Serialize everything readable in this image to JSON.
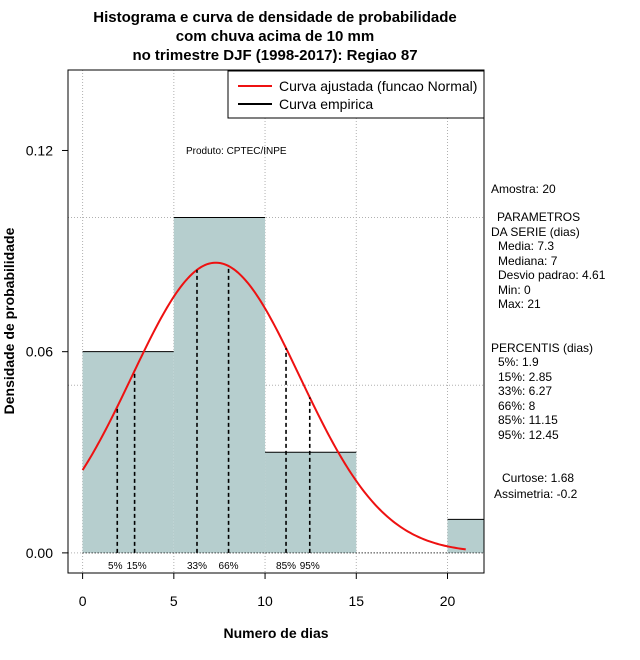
{
  "chart_data": {
    "type": "bar",
    "title_lines": [
      "Histograma e curva de densidade de probabilidade",
      "com chuva acima de 10 mm",
      "no trimestre DJF (1998-2017): Regiao 87"
    ],
    "xlabel": "Numero de dias",
    "ylabel": "Densidade de probabilidade",
    "xlim": [
      -0.8,
      22
    ],
    "ylim": [
      -0.006,
      0.144
    ],
    "x_ticks": [
      "0",
      "5",
      "10",
      "15",
      "20"
    ],
    "x_tick_values": [
      0,
      5,
      10,
      15,
      20
    ],
    "y_ticks": [
      "0.00",
      "0.06",
      "0.12"
    ],
    "y_tick_values": [
      0,
      0.06,
      0.12
    ],
    "grid": true,
    "grid_x": [
      0,
      5,
      10,
      15,
      20
    ],
    "grid_y": [
      0,
      0.05,
      0.1
    ],
    "bar_color": "#b6cece",
    "curve_color": "#ee1111",
    "bins": [
      {
        "start": 0,
        "end": 5,
        "density": 0.06
      },
      {
        "start": 5,
        "end": 10,
        "density": 0.1
      },
      {
        "start": 10,
        "end": 15,
        "density": 0.03
      },
      {
        "start": 15,
        "end": 20,
        "density": 0
      },
      {
        "start": 20,
        "end": 22,
        "density": 0.01
      }
    ],
    "normal_fit": {
      "mean": 7.3,
      "sd": 4.61,
      "x_from": 0,
      "x_to": 21
    },
    "percentile_lines": [
      {
        "label": "5%",
        "value": 1.9
      },
      {
        "label": "15%",
        "value": 2.85
      },
      {
        "label": "33%",
        "value": 6.27
      },
      {
        "label": "66%",
        "value": 8
      },
      {
        "label": "85%",
        "value": 11.15
      },
      {
        "label": "95%",
        "value": 12.45
      }
    ],
    "legend": {
      "position": "top-right",
      "entries": [
        {
          "label": "Curva ajustada (funcao Normal)",
          "color": "#ee1111"
        },
        {
          "label": "Curva empirica",
          "color": "#000000"
        }
      ]
    },
    "annotation": "Produto: CPTEC/INPE",
    "stats": {
      "sample": "Amostra: 20",
      "params_title_1": "PARAMETROS",
      "params_title_2": "DA SERIE (dias)",
      "params": [
        "Media: 7.3",
        "Mediana: 7",
        "Desvio padrao: 4.61",
        "Min: 0",
        "Max: 21"
      ],
      "percentis_title": "PERCENTIS (dias)",
      "percentis": [
        "5%: 1.9",
        "15%: 2.85",
        "33%: 6.27",
        "66%: 8",
        "85%: 11.15",
        "95%: 12.45"
      ],
      "curtose": "Curtose: 1.68",
      "assimetria": "Assimetria: -0.2"
    }
  }
}
